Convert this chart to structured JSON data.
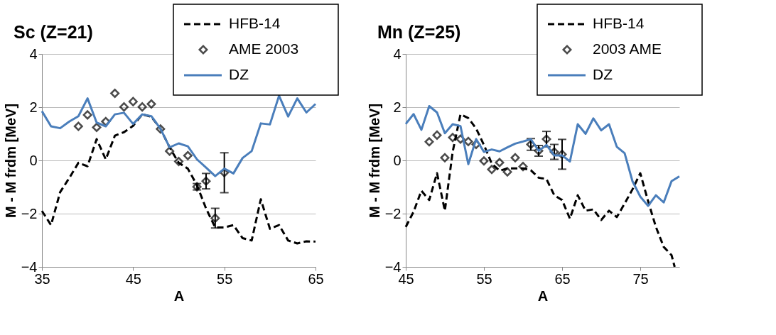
{
  "chart_data": [
    {
      "type": "line",
      "title": "Sc (Z=21)",
      "xlabel": "A",
      "ylabel": "M - M frdm [MeV]",
      "xlim": [
        35,
        65
      ],
      "xticks": [
        35,
        45,
        55,
        65
      ],
      "ylim": [
        -4,
        4
      ],
      "yticks": [
        -4,
        -2,
        0,
        2,
        4
      ],
      "grid": "y",
      "legend": "top right",
      "series": [
        {
          "name": "HFB-14",
          "type": "line",
          "color": "#000000",
          "line_style": "dashed",
          "x": [
            35,
            36,
            37,
            38,
            39,
            40,
            41,
            42,
            43,
            44,
            45,
            46,
            47,
            48,
            49,
            50,
            51,
            52,
            53,
            54,
            55,
            56,
            57,
            58,
            59,
            60,
            61,
            62,
            63,
            64,
            65
          ],
          "values": [
            -1.9,
            -2.43,
            -1.19,
            -0.66,
            -0.09,
            -0.22,
            0.8,
            0.04,
            0.93,
            1.06,
            1.3,
            1.73,
            1.64,
            1.19,
            0.49,
            -0.09,
            -0.31,
            -0.93,
            -1.81,
            -2.52,
            -2.52,
            -2.43,
            -2.92,
            -3.01,
            -1.46,
            -2.57,
            -2.43,
            -3.01,
            -3.12,
            -3.04,
            -3.05
          ]
        },
        {
          "name": "AME 2003",
          "type": "scatter",
          "color": "#000000",
          "marker": "diamond",
          "x": [
            39,
            40,
            41,
            42,
            43,
            44,
            45,
            46,
            47,
            48,
            49,
            50,
            51,
            52,
            53,
            54,
            55
          ],
          "values": [
            1.28,
            1.71,
            1.24,
            1.46,
            2.52,
            2.01,
            2.21,
            2.01,
            2.12,
            1.18,
            0.35,
            -0.04,
            0.18,
            -0.99,
            -0.78,
            -2.17,
            -0.46
          ],
          "errors": [
            null,
            null,
            null,
            null,
            null,
            null,
            null,
            null,
            null,
            null,
            null,
            null,
            null,
            0.12,
            0.29,
            0.37,
            0.75
          ]
        },
        {
          "name": "DZ",
          "type": "line",
          "color": "#4a7ebb",
          "line_style": "solid",
          "x": [
            35,
            36,
            37,
            38,
            39,
            40,
            41,
            42,
            43,
            44,
            45,
            46,
            47,
            48,
            49,
            50,
            51,
            52,
            53,
            54,
            55,
            56,
            57,
            58,
            59,
            60,
            61,
            62,
            63,
            64,
            65
          ],
          "values": [
            1.85,
            1.28,
            1.21,
            1.46,
            1.66,
            2.33,
            1.42,
            1.28,
            1.73,
            1.79,
            1.37,
            1.73,
            1.66,
            1.19,
            0.49,
            0.64,
            0.53,
            0.04,
            -0.27,
            -0.59,
            -0.31,
            -0.49,
            0.09,
            0.35,
            1.39,
            1.35,
            2.43,
            1.65,
            2.33,
            1.8,
            2.12
          ]
        }
      ]
    },
    {
      "type": "line",
      "title": "Mn (Z=25)",
      "xlabel": "A",
      "ylabel": "M - M frdm [MeV]",
      "xlim": [
        45,
        80
      ],
      "xticks": [
        45,
        55,
        65,
        75
      ],
      "ylim": [
        -4,
        4
      ],
      "yticks": [
        -4,
        -2,
        0,
        2,
        4
      ],
      "grid": "y",
      "legend": "top right",
      "series": [
        {
          "name": "HFB-14",
          "type": "line",
          "color": "#000000",
          "line_style": "dashed",
          "x": [
            45,
            46,
            47,
            48,
            49,
            50,
            51,
            52,
            53,
            54,
            55,
            56,
            57,
            58,
            59,
            60,
            61,
            62,
            63,
            64,
            65,
            66,
            67,
            68,
            69,
            70,
            71,
            72,
            73,
            74,
            75,
            76,
            77,
            78,
            79,
            79.4
          ],
          "values": [
            -2.5,
            -1.93,
            -1.14,
            -1.49,
            -0.48,
            -1.89,
            0.32,
            1.73,
            1.59,
            1.2,
            0.58,
            -0.12,
            -0.39,
            -0.3,
            -0.3,
            -0.3,
            -0.37,
            -0.65,
            -0.7,
            -1.31,
            -1.49,
            -2.19,
            -1.31,
            -1.89,
            -1.84,
            -2.24,
            -1.89,
            -2.13,
            -1.62,
            -1.09,
            -0.48,
            -1.53,
            -2.5,
            -3.25,
            -3.56,
            -4.0
          ]
        },
        {
          "name": "2003 AME",
          "type": "scatter",
          "color": "#000000",
          "marker": "diamond",
          "x": [
            48,
            49,
            50,
            51,
            52,
            53,
            54,
            55,
            56,
            57,
            58,
            59,
            60,
            61,
            62,
            63,
            64,
            65
          ],
          "values": [
            0.7,
            0.95,
            0.1,
            0.86,
            0.8,
            0.71,
            0.6,
            -0.02,
            -0.34,
            -0.08,
            -0.43,
            0.1,
            -0.23,
            0.6,
            0.36,
            0.8,
            0.32,
            0.23
          ],
          "errors": [
            null,
            null,
            null,
            null,
            null,
            null,
            null,
            null,
            null,
            null,
            null,
            null,
            null,
            0.22,
            0.2,
            0.29,
            0.28,
            0.56
          ]
        },
        {
          "name": "DZ",
          "type": "line",
          "color": "#4a7ebb",
          "line_style": "solid",
          "x": [
            45,
            46,
            47,
            48,
            49,
            50,
            51,
            52,
            53,
            54,
            55,
            56,
            57,
            58,
            59,
            60,
            61,
            62,
            63,
            64,
            65,
            66,
            67,
            68,
            69,
            70,
            71,
            72,
            73,
            74,
            75,
            76,
            77,
            78,
            79,
            80
          ],
          "values": [
            1.37,
            1.74,
            1.15,
            2.04,
            1.8,
            1.02,
            1.36,
            1.29,
            -0.14,
            0.8,
            0.32,
            0.41,
            0.34,
            0.49,
            0.63,
            0.71,
            0.8,
            0.36,
            0.58,
            0.19,
            0.19,
            -0.04,
            1.36,
            1.0,
            1.58,
            1.13,
            1.36,
            0.51,
            0.27,
            -0.78,
            -1.36,
            -1.71,
            -1.31,
            -1.58,
            -0.78,
            -0.6
          ]
        }
      ]
    }
  ]
}
